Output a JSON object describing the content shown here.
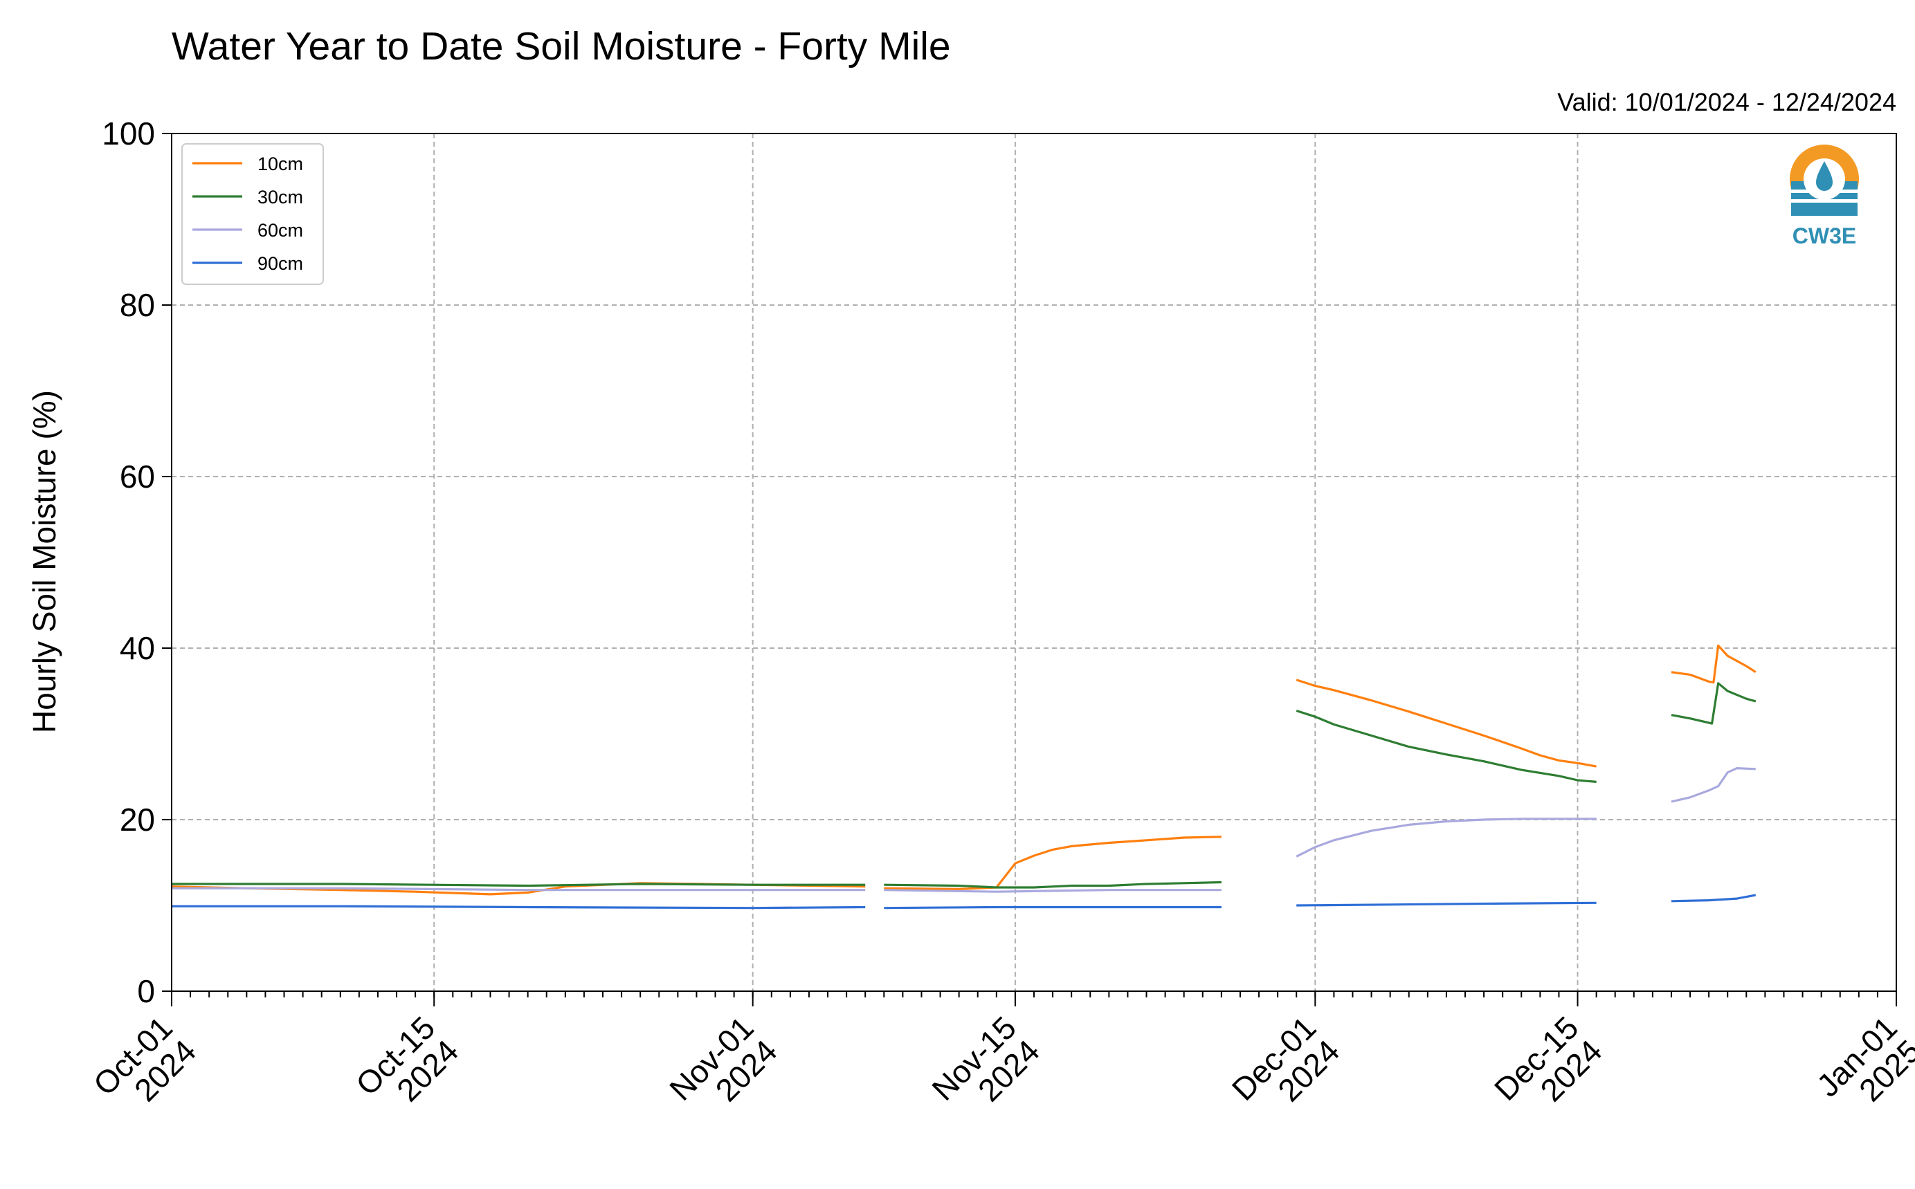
{
  "chart_data": {
    "type": "line",
    "title": "Water Year to Date Soil Moisture - Forty Mile",
    "subtitle": "Valid: 10/01/2024 - 12/24/2024",
    "xlabel": "",
    "ylabel": "Hourly Soil Moisture (%)",
    "xlim": [
      "2024-10-01",
      "2025-01-01"
    ],
    "ylim": [
      0,
      100
    ],
    "yticks": [
      0,
      20,
      40,
      60,
      80,
      100
    ],
    "xticks": [
      {
        "date": "2024-10-01",
        "line1": "Oct-01",
        "line2": "2024"
      },
      {
        "date": "2024-10-15",
        "line1": "Oct-15",
        "line2": "2024"
      },
      {
        "date": "2024-11-01",
        "line1": "Nov-01",
        "line2": "2024"
      },
      {
        "date": "2024-11-15",
        "line1": "Nov-15",
        "line2": "2024"
      },
      {
        "date": "2024-12-01",
        "line1": "Dec-01",
        "line2": "2024"
      },
      {
        "date": "2024-12-15",
        "line1": "Dec-15",
        "line2": "2024"
      },
      {
        "date": "2025-01-01",
        "line1": "Jan-01",
        "line2": "2025"
      }
    ],
    "grid": true,
    "legend_position": "top-left",
    "series": [
      {
        "name": "10cm",
        "color": "#ff7f0e",
        "segments": [
          [
            [
              "2024-10-01",
              12.2
            ],
            [
              "2024-10-05",
              12.0
            ],
            [
              "2024-10-10",
              11.8
            ],
            [
              "2024-10-14",
              11.6
            ],
            [
              "2024-10-18",
              11.3
            ],
            [
              "2024-10-20",
              11.5
            ],
            [
              "2024-10-22",
              12.2
            ],
            [
              "2024-10-26",
              12.6
            ],
            [
              "2024-11-01",
              12.4
            ],
            [
              "2024-11-07",
              12.2
            ]
          ],
          [
            [
              "2024-11-08",
              12.0
            ],
            [
              "2024-11-12",
              11.9
            ],
            [
              "2024-11-14",
              12.1
            ],
            [
              "2024-11-14 12:00",
              13.5
            ],
            [
              "2024-11-15",
              14.9
            ],
            [
              "2024-11-16",
              15.8
            ],
            [
              "2024-11-17",
              16.5
            ],
            [
              "2024-11-18",
              16.9
            ],
            [
              "2024-11-20",
              17.3
            ],
            [
              "2024-11-22",
              17.6
            ],
            [
              "2024-11-24",
              17.9
            ],
            [
              "2024-11-26",
              18.0
            ]
          ],
          [
            [
              "2024-11-30",
              36.3
            ],
            [
              "2024-12-01",
              35.6
            ],
            [
              "2024-12-02",
              35.1
            ],
            [
              "2024-12-04",
              33.9
            ],
            [
              "2024-12-06",
              32.6
            ],
            [
              "2024-12-08",
              31.2
            ],
            [
              "2024-12-10",
              29.8
            ],
            [
              "2024-12-12",
              28.3
            ],
            [
              "2024-12-13",
              27.5
            ],
            [
              "2024-12-14",
              26.9
            ],
            [
              "2024-12-15",
              26.6
            ],
            [
              "2024-12-16",
              26.2
            ]
          ],
          [
            [
              "2024-12-20",
              37.2
            ],
            [
              "2024-12-21",
              36.9
            ],
            [
              "2024-12-22",
              36.1
            ],
            [
              "2024-12-22 06:00",
              36.0
            ],
            [
              "2024-12-22 12:00",
              40.3
            ],
            [
              "2024-12-23",
              39.1
            ],
            [
              "2024-12-24",
              37.9
            ],
            [
              "2024-12-24 12:00",
              37.2
            ]
          ]
        ]
      },
      {
        "name": "30cm",
        "color": "#2e7d32",
        "segments": [
          [
            [
              "2024-10-01",
              12.5
            ],
            [
              "2024-10-10",
              12.5
            ],
            [
              "2024-10-20",
              12.3
            ],
            [
              "2024-10-26",
              12.5
            ],
            [
              "2024-11-01",
              12.4
            ],
            [
              "2024-11-07",
              12.4
            ]
          ],
          [
            [
              "2024-11-08",
              12.4
            ],
            [
              "2024-11-12",
              12.3
            ],
            [
              "2024-11-14",
              12.1
            ],
            [
              "2024-11-16",
              12.1
            ],
            [
              "2024-11-18",
              12.3
            ],
            [
              "2024-11-20",
              12.3
            ],
            [
              "2024-11-22",
              12.5
            ],
            [
              "2024-11-24",
              12.6
            ],
            [
              "2024-11-26",
              12.7
            ]
          ],
          [
            [
              "2024-11-30",
              32.7
            ],
            [
              "2024-12-01",
              32.0
            ],
            [
              "2024-12-02",
              31.1
            ],
            [
              "2024-12-04",
              29.8
            ],
            [
              "2024-12-06",
              28.5
            ],
            [
              "2024-12-08",
              27.6
            ],
            [
              "2024-12-10",
              26.8
            ],
            [
              "2024-12-12",
              25.8
            ],
            [
              "2024-12-14",
              25.1
            ],
            [
              "2024-12-15",
              24.6
            ],
            [
              "2024-12-16",
              24.4
            ]
          ],
          [
            [
              "2024-12-20",
              32.2
            ],
            [
              "2024-12-21",
              31.8
            ],
            [
              "2024-12-22",
              31.3
            ],
            [
              "2024-12-22 04:00",
              31.2
            ],
            [
              "2024-12-22 12:00",
              35.9
            ],
            [
              "2024-12-23",
              35.0
            ],
            [
              "2024-12-24",
              34.1
            ],
            [
              "2024-12-24 12:00",
              33.8
            ]
          ]
        ]
      },
      {
        "name": "60cm",
        "color": "#a9a9df",
        "segments": [
          [
            [
              "2024-10-01",
              12.0
            ],
            [
              "2024-10-10",
              12.0
            ],
            [
              "2024-10-20",
              11.8
            ],
            [
              "2024-11-01",
              11.8
            ],
            [
              "2024-11-07",
              11.8
            ]
          ],
          [
            [
              "2024-11-08",
              11.8
            ],
            [
              "2024-11-14",
              11.6
            ],
            [
              "2024-11-20",
              11.8
            ],
            [
              "2024-11-26",
              11.8
            ]
          ],
          [
            [
              "2024-11-30",
              15.7
            ],
            [
              "2024-12-01",
              16.8
            ],
            [
              "2024-12-02",
              17.6
            ],
            [
              "2024-12-04",
              18.7
            ],
            [
              "2024-12-06",
              19.4
            ],
            [
              "2024-12-08",
              19.8
            ],
            [
              "2024-12-10",
              20.0
            ],
            [
              "2024-12-12",
              20.1
            ],
            [
              "2024-12-14",
              20.1
            ],
            [
              "2024-12-16",
              20.1
            ]
          ],
          [
            [
              "2024-12-20",
              22.1
            ],
            [
              "2024-12-21",
              22.6
            ],
            [
              "2024-12-22",
              23.4
            ],
            [
              "2024-12-22 12:00",
              23.9
            ],
            [
              "2024-12-23",
              25.5
            ],
            [
              "2024-12-23 12:00",
              26.0
            ],
            [
              "2024-12-24 12:00",
              25.9
            ]
          ]
        ]
      },
      {
        "name": "90cm",
        "color": "#2f6fd6",
        "segments": [
          [
            [
              "2024-10-01",
              9.9
            ],
            [
              "2024-10-10",
              9.9
            ],
            [
              "2024-10-20",
              9.8
            ],
            [
              "2024-11-01",
              9.7
            ],
            [
              "2024-11-07",
              9.8
            ]
          ],
          [
            [
              "2024-11-08",
              9.7
            ],
            [
              "2024-11-14",
              9.8
            ],
            [
              "2024-11-20",
              9.8
            ],
            [
              "2024-11-26",
              9.8
            ]
          ],
          [
            [
              "2024-11-30",
              10.0
            ],
            [
              "2024-12-05",
              10.1
            ],
            [
              "2024-12-10",
              10.2
            ],
            [
              "2024-12-16",
              10.3
            ]
          ],
          [
            [
              "2024-12-20",
              10.5
            ],
            [
              "2024-12-22",
              10.6
            ],
            [
              "2024-12-23 12:00",
              10.8
            ],
            [
              "2024-12-24 12:00",
              11.2
            ]
          ]
        ]
      }
    ]
  },
  "logo": {
    "text": "CW3E",
    "ring_color": "#f39a24",
    "water_color": "#2f8fb4"
  }
}
